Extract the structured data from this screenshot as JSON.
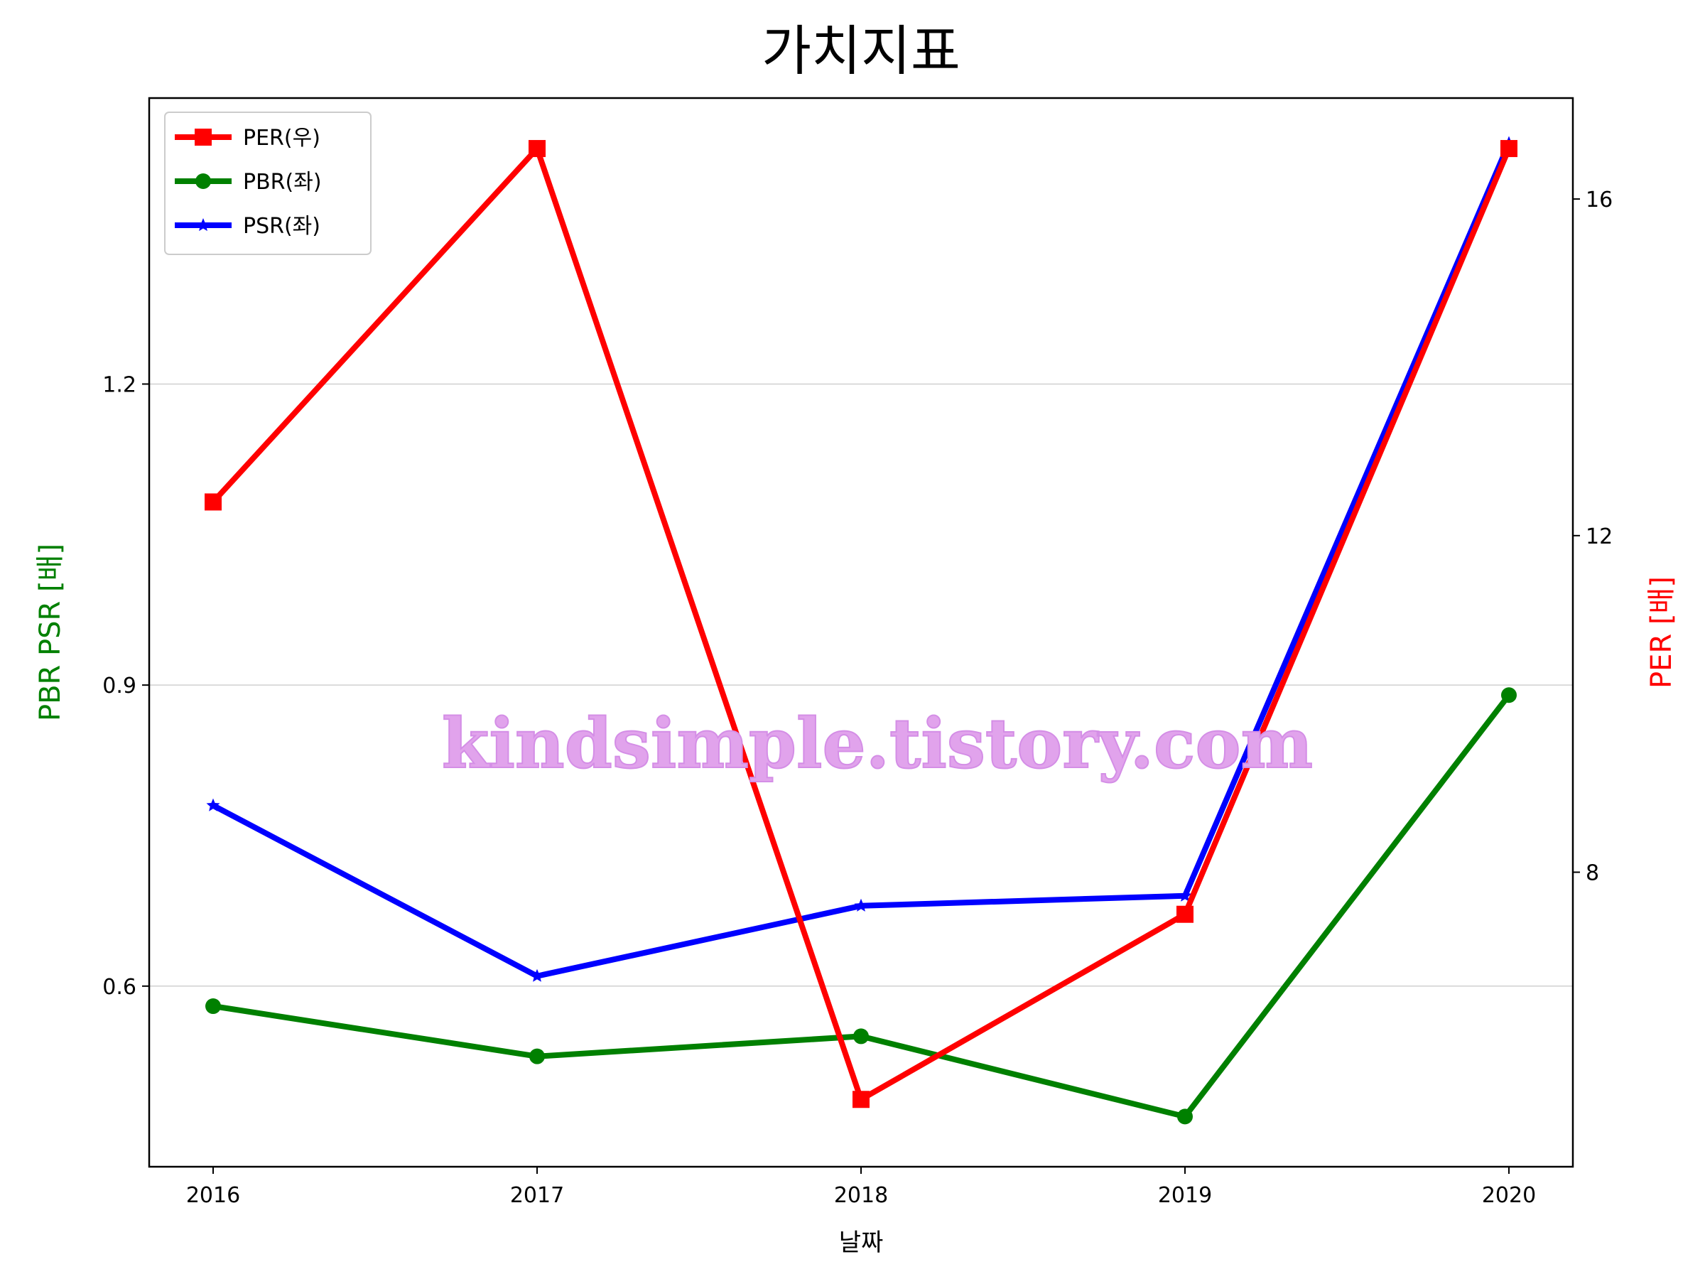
{
  "chart_data": {
    "type": "line",
    "title": "가치지표",
    "xlabel": "날짜",
    "ylabel_left": "PBR PSR [배]",
    "ylabel_right": "PER [배]",
    "categories": [
      "2016",
      "2017",
      "2018",
      "2019",
      "2020"
    ],
    "left_axis": {
      "ylim": [
        0.42,
        1.485
      ],
      "ticks": [
        0.6,
        0.9,
        1.2
      ],
      "tick_labels": [
        "0.6",
        "0.9",
        "1.2"
      ]
    },
    "right_axis": {
      "ylim": [
        4.5,
        17.2
      ],
      "ticks": [
        8,
        12,
        16
      ],
      "tick_labels": [
        "8",
        "12",
        "16"
      ]
    },
    "grid": "horizontal (left axis)",
    "legend_position": "top-left",
    "series": [
      {
        "name": "PER(우)",
        "axis": "right",
        "color": "#ff0000",
        "marker": "square",
        "values": [
          12.4,
          16.6,
          5.3,
          7.5,
          16.6
        ]
      },
      {
        "name": "PBR(좌)",
        "axis": "left",
        "color": "#008000",
        "marker": "circle",
        "values": [
          0.58,
          0.53,
          0.55,
          0.47,
          0.89
        ]
      },
      {
        "name": "PSR(좌)",
        "axis": "left",
        "color": "#0000ff",
        "marker": "star",
        "values": [
          0.78,
          0.61,
          0.68,
          0.69,
          1.44
        ]
      }
    ],
    "watermark": "kindsimple.tistory.com"
  }
}
